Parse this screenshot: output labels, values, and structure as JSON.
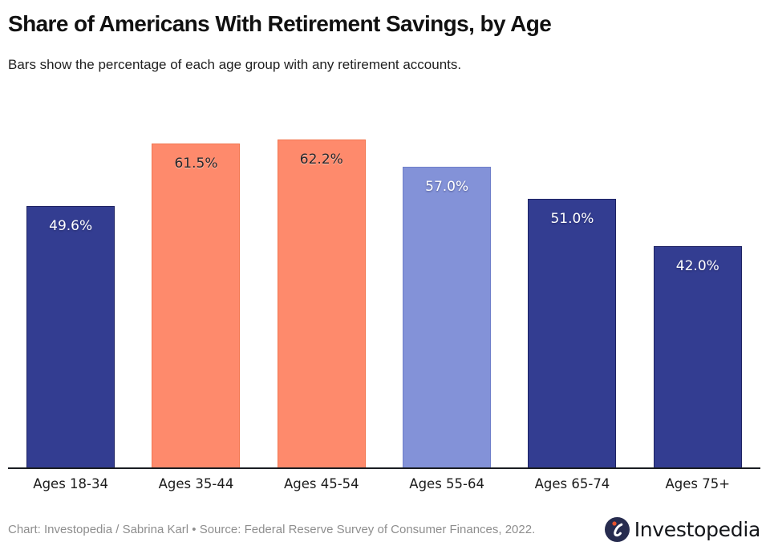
{
  "header": {
    "title": "Share of Americans With Retirement Savings, by Age",
    "subtitle": "Bars show the percentage of each age group with any retirement accounts."
  },
  "chart_data": {
    "type": "bar",
    "title": "Share of Americans With Retirement Savings, by Age",
    "subtitle": "Bars show the percentage of each age group with any retirement accounts.",
    "categories": [
      "Ages 18-34",
      "Ages 35-44",
      "Ages 45-54",
      "Ages 55-64",
      "Ages 65-74",
      "Ages 75+"
    ],
    "values": [
      49.6,
      61.5,
      62.2,
      57.0,
      51.0,
      42.0
    ],
    "value_labels": [
      "49.6%",
      "61.5%",
      "62.2%",
      "57.0%",
      "51.0%",
      "42.0%"
    ],
    "unit": "percent",
    "bar_fill_colors": [
      "#333d91",
      "#fe8a6c",
      "#fe8a6c",
      "#8392d8",
      "#333d91",
      "#333d91"
    ],
    "bar_border_colors": [
      "#1d2263",
      "#f2764f",
      "#f2764f",
      "#6e7ec9",
      "#1d2263",
      "#1d2263"
    ],
    "value_label_styles": [
      "light",
      "dark",
      "dark",
      "light",
      "light",
      "light"
    ],
    "xlabel": "",
    "ylabel": "",
    "ylim": [
      0,
      62.2
    ],
    "grid": false,
    "legend": false,
    "value_labels_position": "inside-top"
  },
  "footer": {
    "credit": "Chart: Investopedia / Sabrina Karl • Source: Federal Reserve Survey of Consumer Finances, 2022.",
    "logo_text": "Investopedia",
    "logo_icon": "investopedia-swirl-i-icon",
    "brand_colors": {
      "circle_navy": "#272c4f",
      "dot_orange": "#e8542e"
    }
  }
}
